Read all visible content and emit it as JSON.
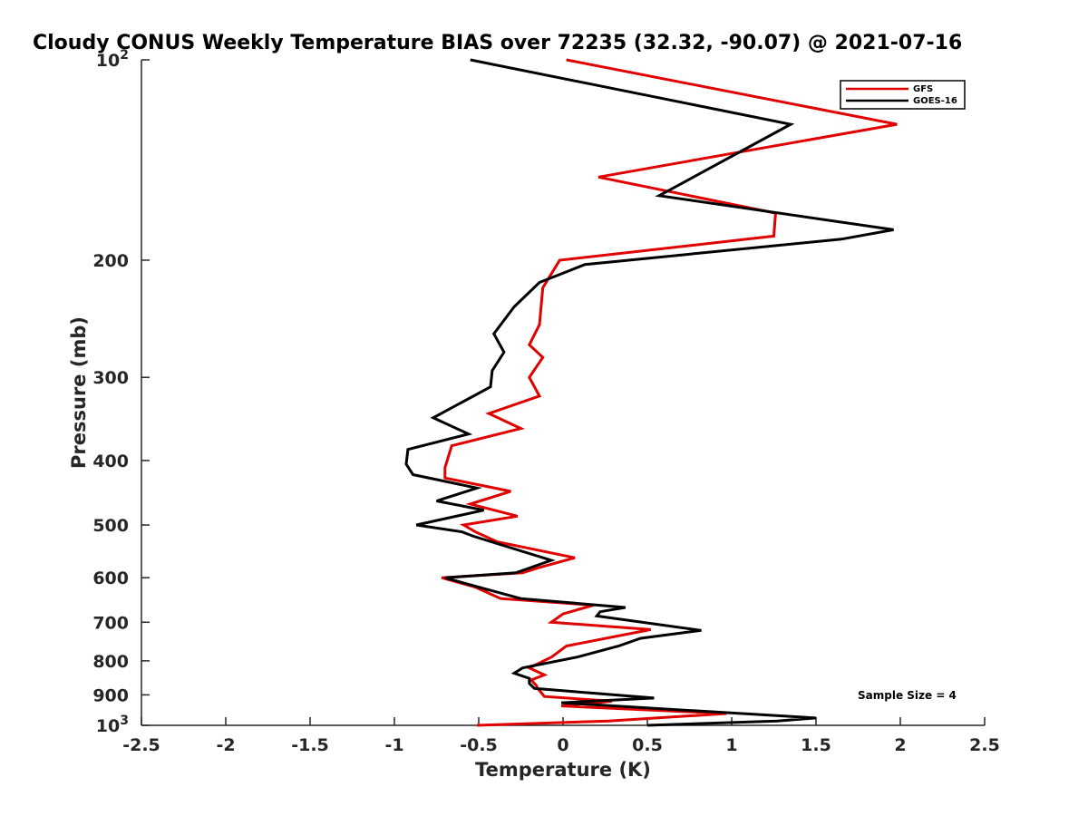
{
  "chart_data": {
    "type": "line",
    "title": "Cloudy CONUS Weekly Temperature BIAS over 72235 (32.32, -90.07) @ 2021-07-16",
    "xlabel": "Temperature (K)",
    "ylabel": "Pressure (mb)",
    "xlim": [
      -2.5,
      2.5
    ],
    "ylim": [
      100,
      1000
    ],
    "yscale": "log",
    "yreverse": true,
    "grid": false,
    "legend_position": "top-right",
    "x_ticks": [
      {
        "value": -2.5,
        "label": "-2.5"
      },
      {
        "value": -2,
        "label": "-2"
      },
      {
        "value": -1.5,
        "label": "-1.5"
      },
      {
        "value": -1,
        "label": "-1"
      },
      {
        "value": -0.5,
        "label": "-0.5"
      },
      {
        "value": 0,
        "label": "0"
      },
      {
        "value": 0.5,
        "label": "0.5"
      },
      {
        "value": 1,
        "label": "1"
      },
      {
        "value": 1.5,
        "label": "1.5"
      },
      {
        "value": 2,
        "label": "2"
      },
      {
        "value": 2.5,
        "label": "2.5"
      }
    ],
    "y_ticks": [
      {
        "value": 100,
        "base": "10",
        "exp": "2"
      },
      {
        "value": 200,
        "label": "200"
      },
      {
        "value": 300,
        "label": "300"
      },
      {
        "value": 400,
        "label": "400"
      },
      {
        "value": 500,
        "label": "500"
      },
      {
        "value": 600,
        "label": "600"
      },
      {
        "value": 700,
        "label": "700"
      },
      {
        "value": 800,
        "label": "800"
      },
      {
        "value": 900,
        "label": "900"
      },
      {
        "value": 1000,
        "base": "10",
        "exp": "3"
      }
    ],
    "annotation": "Sample Size = 4",
    "series": [
      {
        "name": "GFS",
        "color": "#e00000",
        "points": [
          [
            0.02,
            100
          ],
          [
            1.98,
            125
          ],
          [
            0.21,
            150
          ],
          [
            1.26,
            170
          ],
          [
            1.25,
            184
          ],
          [
            -0.02,
            200
          ],
          [
            -0.12,
            220
          ],
          [
            -0.14,
            250
          ],
          [
            -0.2,
            268
          ],
          [
            -0.12,
            280
          ],
          [
            -0.2,
            300
          ],
          [
            -0.14,
            320
          ],
          [
            -0.44,
            340
          ],
          [
            -0.25,
            358
          ],
          [
            -0.66,
            380
          ],
          [
            -0.7,
            410
          ],
          [
            -0.7,
            425
          ],
          [
            -0.31,
            445
          ],
          [
            -0.55,
            465
          ],
          [
            -0.27,
            485
          ],
          [
            -0.59,
            500
          ],
          [
            -0.52,
            512
          ],
          [
            -0.39,
            530
          ],
          [
            0.07,
            560
          ],
          [
            -0.15,
            580
          ],
          [
            -0.24,
            590
          ],
          [
            -0.72,
            600
          ],
          [
            -0.52,
            620
          ],
          [
            -0.37,
            645
          ],
          [
            0.18,
            660
          ],
          [
            0.0,
            680
          ],
          [
            -0.07,
            700
          ],
          [
            0.52,
            718
          ],
          [
            0.02,
            760
          ],
          [
            -0.07,
            790
          ],
          [
            -0.2,
            820
          ],
          [
            -0.11,
            840
          ],
          [
            -0.19,
            855
          ],
          [
            -0.16,
            870
          ],
          [
            -0.15,
            880
          ],
          [
            -0.11,
            905
          ],
          [
            0.29,
            920
          ],
          [
            -0.01,
            935
          ],
          [
            0.97,
            960
          ],
          [
            0.27,
            985
          ],
          [
            -0.51,
            1000
          ]
        ]
      },
      {
        "name": "GOES-16",
        "color": "#000000",
        "points": [
          [
            -0.55,
            100
          ],
          [
            1.35,
            125
          ],
          [
            0.57,
            160
          ],
          [
            1.96,
            180
          ],
          [
            1.65,
            186
          ],
          [
            0.13,
            203
          ],
          [
            -0.14,
            216
          ],
          [
            -0.29,
            235
          ],
          [
            -0.41,
            258
          ],
          [
            -0.35,
            275
          ],
          [
            -0.42,
            293
          ],
          [
            -0.43,
            310
          ],
          [
            -0.77,
            345
          ],
          [
            -0.56,
            365
          ],
          [
            -0.92,
            385
          ],
          [
            -0.93,
            405
          ],
          [
            -0.89,
            420
          ],
          [
            -0.51,
            440
          ],
          [
            -0.75,
            460
          ],
          [
            -0.47,
            475
          ],
          [
            -0.87,
            500
          ],
          [
            -0.6,
            512
          ],
          [
            -0.53,
            520
          ],
          [
            -0.07,
            565
          ],
          [
            -0.28,
            590
          ],
          [
            -0.7,
            600
          ],
          [
            -0.5,
            620
          ],
          [
            -0.25,
            645
          ],
          [
            0.37,
            665
          ],
          [
            0.22,
            675
          ],
          [
            0.2,
            685
          ],
          [
            0.82,
            720
          ],
          [
            0.46,
            740
          ],
          [
            0.33,
            760
          ],
          [
            0.08,
            790
          ],
          [
            -0.24,
            820
          ],
          [
            -0.29,
            835
          ],
          [
            -0.2,
            850
          ],
          [
            -0.2,
            865
          ],
          [
            -0.17,
            880
          ],
          [
            0.54,
            910
          ],
          [
            -0.01,
            925
          ],
          [
            1.5,
            975
          ],
          [
            1.27,
            985
          ],
          [
            0.5,
            1000
          ]
        ]
      }
    ]
  }
}
